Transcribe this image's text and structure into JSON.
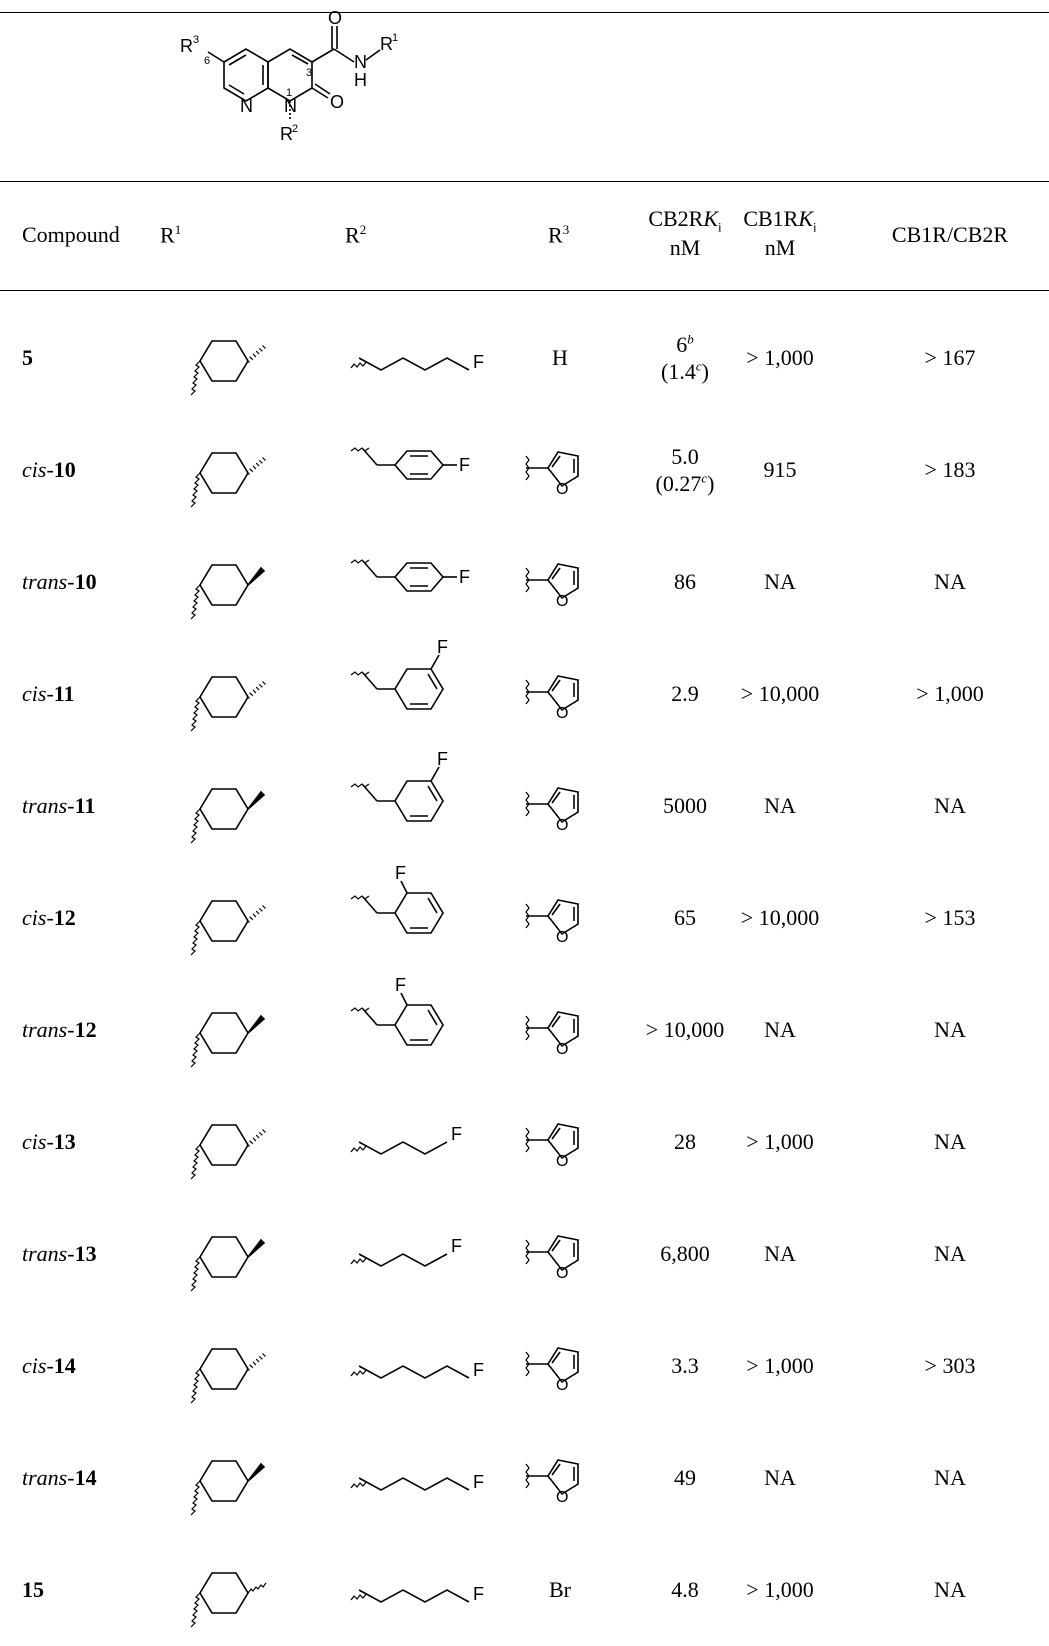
{
  "scaffold": {
    "labels": {
      "r3": "R",
      "r3_sup": "3",
      "pos6": "6",
      "n8": "N",
      "n1": "N",
      "pos1": "1",
      "r2": "R",
      "r2_sup": "2",
      "o_amide": "O",
      "o_ring": "O",
      "nh_n": "N",
      "nh_h": "H",
      "r1": "R",
      "r1_sup": "1",
      "pos3": "3"
    }
  },
  "header": {
    "compound": "Compound",
    "r1": "R",
    "r1_sup": "1",
    "r2": "R",
    "r2_sup": "2",
    "r3": "R",
    "r3_sup": "3",
    "cb2_line1": "CB2R",
    "cb2_k": "K",
    "cb2_sub": "i",
    "cb2_unit": "nM",
    "cb1_line1": "CB1R",
    "cb1_k": "K",
    "cb1_sub": "i",
    "cb1_unit": "nM",
    "ratio": "CB1R/CB2R"
  },
  "rows": [
    {
      "prefix": "",
      "num": "5",
      "r1": "cis",
      "r2": "pentyl-F",
      "r3": "H",
      "cb2": "6",
      "cb2_sup": "b",
      "cb2_note": "(1.4",
      "cb2_note_sup": "c",
      "cb2_note_end": ")",
      "cb1": "> 1,000",
      "ratio": "> 167"
    },
    {
      "prefix": "cis-",
      "num": "10",
      "r1": "cis",
      "r2": "4-fluorobenzyl",
      "r3": "furan",
      "cb2": "5.0",
      "cb2_sup": "",
      "cb2_note": "(0.27",
      "cb2_note_sup": "c",
      "cb2_note_end": ")",
      "cb1": "915",
      "ratio": "> 183"
    },
    {
      "prefix": "trans-",
      "num": "10",
      "r1": "trans",
      "r2": "4-fluorobenzyl",
      "r3": "furan",
      "cb2": "86",
      "cb2_sup": "",
      "cb2_note": "",
      "cb2_note_sup": "",
      "cb2_note_end": "",
      "cb1": "NA",
      "ratio": "NA"
    },
    {
      "prefix": "cis-",
      "num": "11",
      "r1": "cis",
      "r2": "3-fluorobenzyl",
      "r3": "furan",
      "cb2": "2.9",
      "cb2_sup": "",
      "cb2_note": "",
      "cb2_note_sup": "",
      "cb2_note_end": "",
      "cb1": "> 10,000",
      "ratio": "> 1,000"
    },
    {
      "prefix": "trans-",
      "num": "11",
      "r1": "trans",
      "r2": "3-fluorobenzyl",
      "r3": "furan",
      "cb2": "5000",
      "cb2_sup": "",
      "cb2_note": "",
      "cb2_note_sup": "",
      "cb2_note_end": "",
      "cb1": "NA",
      "ratio": "NA"
    },
    {
      "prefix": "cis-",
      "num": "12",
      "r1": "cis",
      "r2": "2-fluorobenzyl",
      "r3": "furan",
      "cb2": "65",
      "cb2_sup": "",
      "cb2_note": "",
      "cb2_note_sup": "",
      "cb2_note_end": "",
      "cb1": "> 10,000",
      "ratio": "> 153"
    },
    {
      "prefix": "trans-",
      "num": "12",
      "r1": "trans",
      "r2": "2-fluorobenzyl",
      "r3": "furan",
      "cb2": "> 10,000",
      "cb2_sup": "",
      "cb2_note": "",
      "cb2_note_sup": "",
      "cb2_note_end": "",
      "cb1": "NA",
      "ratio": "NA"
    },
    {
      "prefix": "cis-",
      "num": "13",
      "r1": "cis",
      "r2": "butyl-F",
      "r3": "furan",
      "cb2": "28",
      "cb2_sup": "",
      "cb2_note": "",
      "cb2_note_sup": "",
      "cb2_note_end": "",
      "cb1": "> 1,000",
      "ratio": "NA"
    },
    {
      "prefix": "trans-",
      "num": "13",
      "r1": "trans",
      "r2": "butyl-F",
      "r3": "furan",
      "cb2": "6,800",
      "cb2_sup": "",
      "cb2_note": "",
      "cb2_note_sup": "",
      "cb2_note_end": "",
      "cb1": "NA",
      "ratio": "NA"
    },
    {
      "prefix": "cis-",
      "num": "14",
      "r1": "cis",
      "r2": "pentyl-F",
      "r3": "furan",
      "cb2": "3.3",
      "cb2_sup": "",
      "cb2_note": "",
      "cb2_note_sup": "",
      "cb2_note_end": "",
      "cb1": "> 1,000",
      "ratio": "> 303"
    },
    {
      "prefix": "trans-",
      "num": "14",
      "r1": "trans",
      "r2": "pentyl-F",
      "r3": "furan",
      "cb2": "49",
      "cb2_sup": "",
      "cb2_note": "",
      "cb2_note_sup": "",
      "cb2_note_end": "",
      "cb1": "NA",
      "ratio": "NA"
    },
    {
      "prefix": "",
      "num": "15",
      "r1": "mixed",
      "r2": "pentyl-F",
      "r3": "Br",
      "cb2": "4.8",
      "cb2_sup": "",
      "cb2_note": "",
      "cb2_note_sup": "",
      "cb2_note_end": "",
      "cb1": "> 1,000",
      "ratio": "NA"
    }
  ],
  "glyph_labels": {
    "fluoro": "F",
    "furan_o": "O"
  }
}
